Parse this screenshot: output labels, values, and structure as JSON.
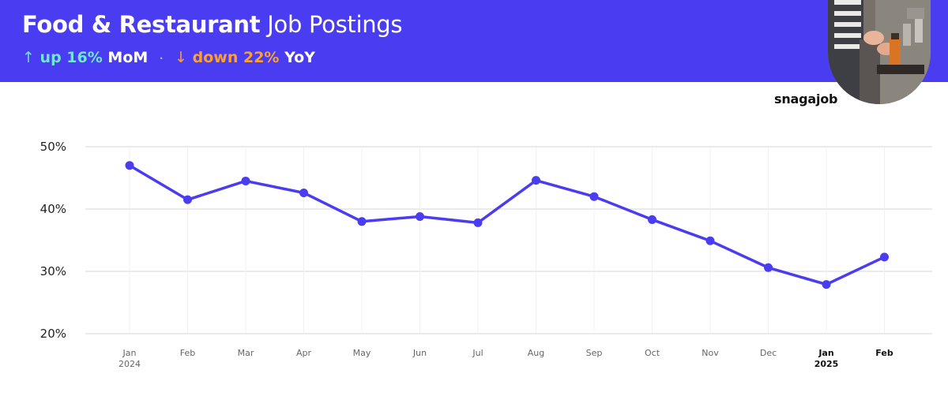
{
  "header": {
    "title_bold": "Food & Restaurant",
    "title_light": "Job Postings",
    "mom_arrow": "↑",
    "mom_text": "up 16%",
    "mom_label": "MoM",
    "separator": "·",
    "yoy_arrow": "↓",
    "yoy_text": "down 22%",
    "yoy_label": "YoY",
    "brand": "snagajob"
  },
  "colors": {
    "banner": "#4a3cf0",
    "line": "#4a3cf0",
    "mom": "#6fe6d6",
    "yoy": "#ff9f2e"
  },
  "chart_data": {
    "type": "line",
    "categories": [
      "Jan",
      "Feb",
      "Mar",
      "Apr",
      "May",
      "Jun",
      "Jul",
      "Aug",
      "Sep",
      "Oct",
      "Nov",
      "Dec",
      "Jan",
      "Feb"
    ],
    "category_sublabels": [
      "2024",
      "",
      "",
      "",
      "",
      "",
      "",
      "",
      "",
      "",
      "",
      "",
      "2025",
      ""
    ],
    "bold_categories": [
      12,
      13
    ],
    "series": [
      {
        "values": [
          47.0,
          41.5,
          44.5,
          42.6,
          38.0,
          38.8,
          37.8,
          44.6,
          42.0,
          38.3,
          34.9,
          30.6,
          27.9,
          32.3
        ]
      }
    ],
    "yticks": [
      "20%",
      "30%",
      "40%",
      "50%"
    ],
    "ytick_values": [
      20,
      30,
      40,
      50
    ],
    "ylim": [
      20,
      50
    ],
    "grid": true,
    "xlabel": "",
    "ylabel": ""
  }
}
